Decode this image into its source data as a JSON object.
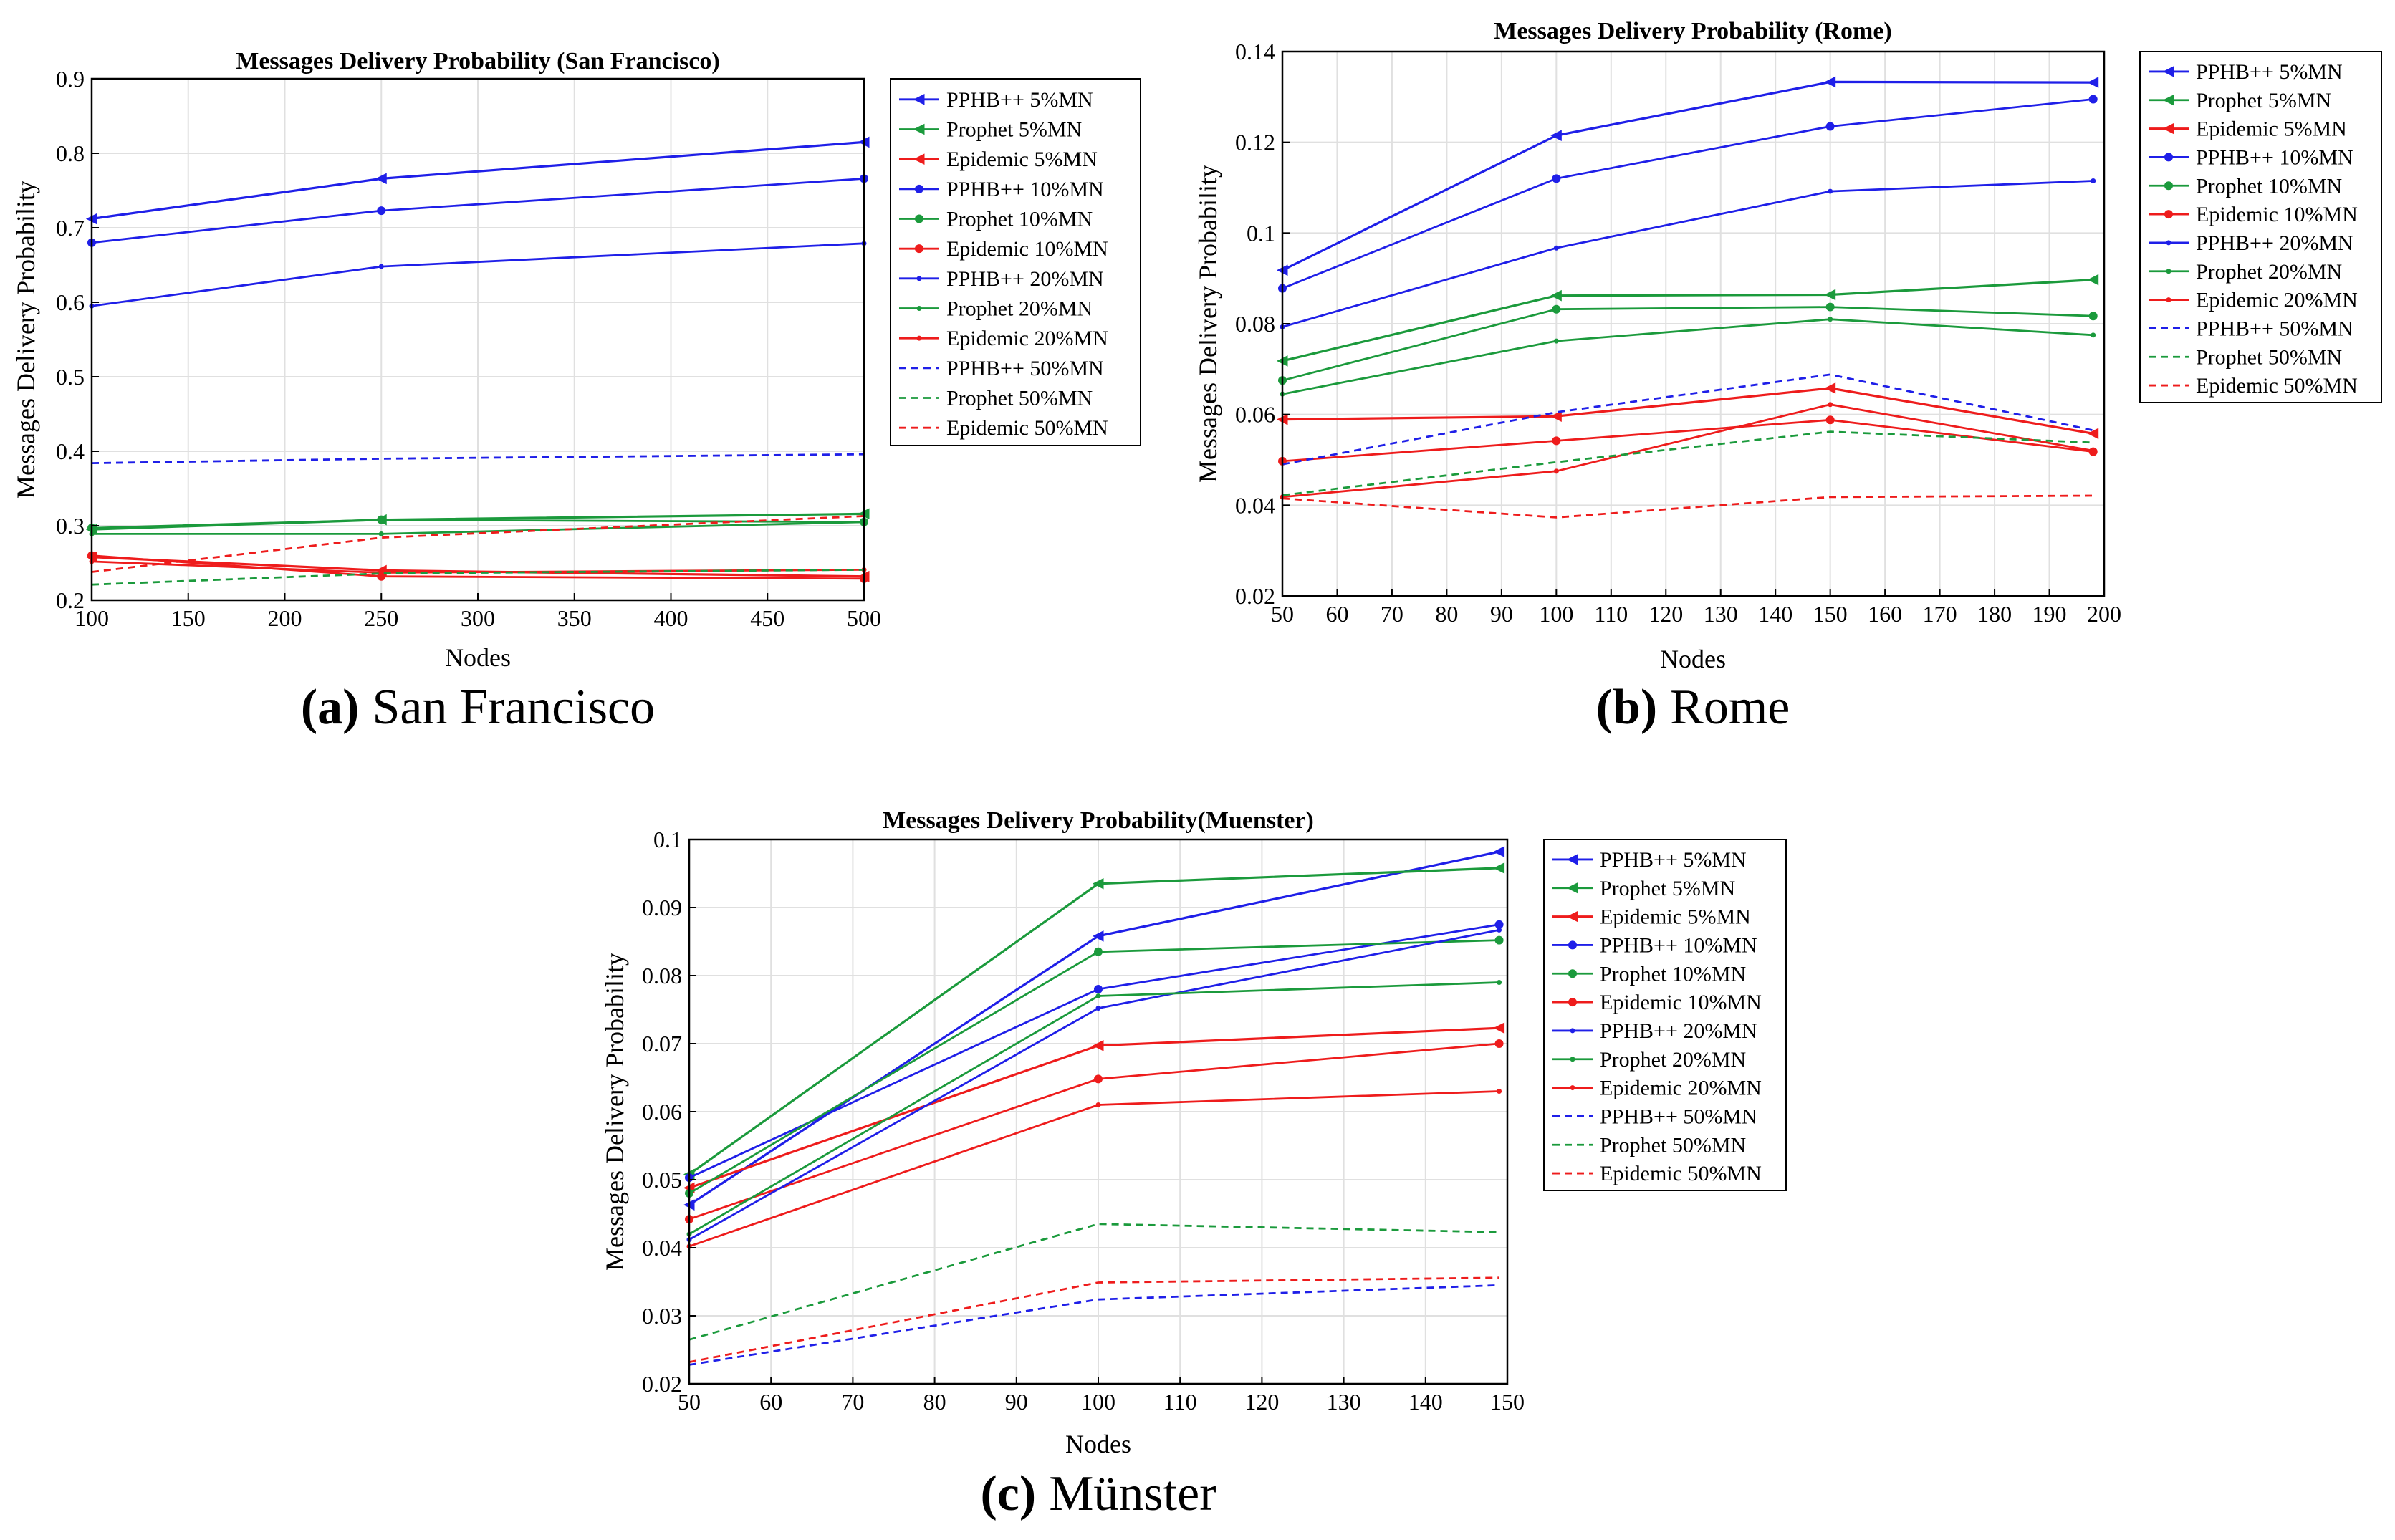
{
  "colors": {
    "PPHB": "#1f1fe8",
    "Prophet": "#1b9a3c",
    "Epidemic": "#ee1c1c"
  },
  "chart_data": [
    {
      "type": "line",
      "title": "Messages Delivery Probability (San Francisco)",
      "xlabel": "Nodes",
      "ylabel": "Messages Delivery Probability",
      "caption_letter": "(a)",
      "caption_text": "San Francisco",
      "xlim": [
        100,
        500
      ],
      "ylim": [
        0.2,
        0.9
      ],
      "xticks": [
        100,
        150,
        200,
        250,
        300,
        350,
        400,
        450,
        500
      ],
      "yticks": [
        0.2,
        0.3,
        0.4,
        0.5,
        0.6,
        0.7,
        0.8,
        0.9
      ],
      "xtick_labels": [
        "100",
        "150",
        "200",
        "250",
        "300",
        "350",
        "400",
        "450",
        "500"
      ],
      "ytick_labels": [
        "0.2",
        "0.3",
        "0.4",
        "0.5",
        "0.6",
        "0.7",
        "0.8",
        "0.9"
      ],
      "legend_position": "right",
      "series": [
        {
          "name": "PPHB++ 5%MN",
          "color": "#1f1fe8",
          "dash": false,
          "marker": "triangle",
          "x": [
            100,
            250,
            500
          ],
          "values": [
            0.712,
            0.766,
            0.815
          ]
        },
        {
          "name": "Prophet 5%MN",
          "color": "#1b9a3c",
          "dash": false,
          "marker": "triangle",
          "x": [
            100,
            250,
            500
          ],
          "values": [
            0.295,
            0.308,
            0.316
          ]
        },
        {
          "name": "Epidemic 5%MN",
          "color": "#ee1c1c",
          "dash": false,
          "marker": "triangle",
          "x": [
            100,
            250,
            500
          ],
          "values": [
            0.258,
            0.24,
            0.232
          ]
        },
        {
          "name": "PPHB++ 10%MN",
          "color": "#1f1fe8",
          "dash": false,
          "marker": "dot",
          "x": [
            100,
            250,
            500
          ],
          "values": [
            0.68,
            0.723,
            0.766
          ]
        },
        {
          "name": "Prophet 10%MN",
          "color": "#1b9a3c",
          "dash": false,
          "marker": "dot",
          "x": [
            100,
            250,
            500
          ],
          "values": [
            0.297,
            0.308,
            0.305
          ]
        },
        {
          "name": "Epidemic 10%MN",
          "color": "#ee1c1c",
          "dash": false,
          "marker": "dot",
          "x": [
            100,
            250,
            500
          ],
          "values": [
            0.26,
            0.232,
            0.229
          ]
        },
        {
          "name": "PPHB++ 20%MN",
          "color": "#1f1fe8",
          "dash": false,
          "marker": "small",
          "x": [
            100,
            250,
            500
          ],
          "values": [
            0.595,
            0.648,
            0.679
          ]
        },
        {
          "name": "Prophet 20%MN",
          "color": "#1b9a3c",
          "dash": false,
          "marker": "small",
          "x": [
            100,
            250,
            500
          ],
          "values": [
            0.289,
            0.289,
            0.305
          ]
        },
        {
          "name": "Epidemic 20%MN",
          "color": "#ee1c1c",
          "dash": false,
          "marker": "small",
          "x": [
            100,
            250,
            500
          ],
          "values": [
            0.252,
            0.237,
            0.241
          ]
        },
        {
          "name": "PPHB++ 50%MN",
          "color": "#1f1fe8",
          "dash": true,
          "marker": "none",
          "x": [
            100,
            250,
            500
          ],
          "values": [
            0.384,
            0.39,
            0.396
          ]
        },
        {
          "name": "Prophet 50%MN",
          "color": "#1b9a3c",
          "dash": true,
          "marker": "none",
          "x": [
            100,
            250,
            500
          ],
          "values": [
            0.221,
            0.236,
            0.241
          ]
        },
        {
          "name": "Epidemic 50%MN",
          "color": "#ee1c1c",
          "dash": true,
          "marker": "none",
          "x": [
            100,
            250,
            500
          ],
          "values": [
            0.238,
            0.284,
            0.313
          ]
        }
      ]
    },
    {
      "type": "line",
      "title": "Messages Delivery Probability (Rome)",
      "xlabel": "Nodes",
      "ylabel": "Messages Delivery Probability",
      "caption_letter": "(b)",
      "caption_text": "Rome",
      "xlim": [
        50,
        200
      ],
      "ylim": [
        0.02,
        0.14
      ],
      "xticks": [
        50,
        60,
        70,
        80,
        90,
        100,
        110,
        120,
        130,
        140,
        150,
        160,
        170,
        180,
        190,
        200
      ],
      "yticks": [
        0.02,
        0.04,
        0.06,
        0.08,
        0.1,
        0.12,
        0.14
      ],
      "xtick_labels": [
        "50",
        "60",
        "70",
        "80",
        "90",
        "100",
        "110",
        "120",
        "130",
        "140",
        "150",
        "160",
        "170",
        "180",
        "190",
        "200"
      ],
      "ytick_labels": [
        "0.02",
        "0.04",
        "0.06",
        "0.08",
        "0.1",
        "0.12",
        "0.14"
      ],
      "legend_position": "right",
      "series": [
        {
          "name": "PPHB++ 5%MN",
          "color": "#1f1fe8",
          "dash": false,
          "marker": "triangle",
          "x": [
            50,
            100,
            150,
            198
          ],
          "values": [
            0.0918,
            0.1215,
            0.1333,
            0.1332
          ]
        },
        {
          "name": "Prophet 5%MN",
          "color": "#1b9a3c",
          "dash": false,
          "marker": "triangle",
          "x": [
            50,
            100,
            150,
            198
          ],
          "values": [
            0.0718,
            0.0862,
            0.0864,
            0.0897
          ]
        },
        {
          "name": "Epidemic 5%MN",
          "color": "#ee1c1c",
          "dash": false,
          "marker": "triangle",
          "x": [
            50,
            100,
            150,
            198
          ],
          "values": [
            0.0589,
            0.0596,
            0.0658,
            0.0558
          ]
        },
        {
          "name": "PPHB++ 10%MN",
          "color": "#1f1fe8",
          "dash": false,
          "marker": "dot",
          "x": [
            50,
            100,
            150,
            198
          ],
          "values": [
            0.0878,
            0.112,
            0.1235,
            0.1295
          ]
        },
        {
          "name": "Prophet 10%MN",
          "color": "#1b9a3c",
          "dash": false,
          "marker": "dot",
          "x": [
            50,
            100,
            150,
            198
          ],
          "values": [
            0.0675,
            0.0832,
            0.0837,
            0.0817
          ]
        },
        {
          "name": "Epidemic 10%MN",
          "color": "#ee1c1c",
          "dash": false,
          "marker": "dot",
          "x": [
            50,
            100,
            150,
            198
          ],
          "values": [
            0.0497,
            0.0542,
            0.0588,
            0.0518
          ]
        },
        {
          "name": "PPHB++ 20%MN",
          "color": "#1f1fe8",
          "dash": false,
          "marker": "small",
          "x": [
            50,
            100,
            150,
            198
          ],
          "values": [
            0.0793,
            0.0967,
            0.1092,
            0.1115
          ]
        },
        {
          "name": "Prophet 20%MN",
          "color": "#1b9a3c",
          "dash": false,
          "marker": "small",
          "x": [
            50,
            100,
            150,
            198
          ],
          "values": [
            0.0645,
            0.0762,
            0.081,
            0.0775
          ]
        },
        {
          "name": "Epidemic 20%MN",
          "color": "#ee1c1c",
          "dash": false,
          "marker": "small",
          "x": [
            50,
            100,
            150,
            198
          ],
          "values": [
            0.0418,
            0.0475,
            0.0622,
            0.052
          ]
        },
        {
          "name": "PPHB++ 50%MN",
          "color": "#1f1fe8",
          "dash": true,
          "marker": "none",
          "x": [
            50,
            100,
            150,
            198
          ],
          "values": [
            0.049,
            0.0605,
            0.0688,
            0.0565
          ]
        },
        {
          "name": "Prophet 50%MN",
          "color": "#1b9a3c",
          "dash": true,
          "marker": "none",
          "x": [
            50,
            100,
            150,
            198
          ],
          "values": [
            0.0422,
            0.0495,
            0.0562,
            0.0538
          ]
        },
        {
          "name": "Epidemic 50%MN",
          "color": "#ee1c1c",
          "dash": true,
          "marker": "none",
          "x": [
            50,
            100,
            150,
            198
          ],
          "values": [
            0.0415,
            0.0373,
            0.0418,
            0.0421
          ]
        }
      ]
    },
    {
      "type": "line",
      "title": "Messages Delivery Probability(Muenster)",
      "xlabel": "Nodes",
      "ylabel": "Messages Delivery Probability",
      "caption_letter": "(c)",
      "caption_text": "Münster",
      "xlim": [
        50,
        150
      ],
      "ylim": [
        0.02,
        0.1
      ],
      "xticks": [
        50,
        60,
        70,
        80,
        90,
        100,
        110,
        120,
        130,
        140,
        150
      ],
      "yticks": [
        0.02,
        0.03,
        0.04,
        0.05,
        0.06,
        0.07,
        0.08,
        0.09,
        0.1
      ],
      "xtick_labels": [
        "50",
        "60",
        "70",
        "80",
        "90",
        "100",
        "110",
        "120",
        "130",
        "140",
        "150"
      ],
      "ytick_labels": [
        "0.02",
        "0.03",
        "0.04",
        "0.05",
        "0.06",
        "0.07",
        "0.08",
        "0.09",
        "0.1"
      ],
      "legend_position": "right",
      "series": [
        {
          "name": "PPHB++ 5%MN",
          "color": "#1f1fe8",
          "dash": false,
          "marker": "triangle",
          "x": [
            50,
            100,
            149
          ],
          "values": [
            0.0463,
            0.0858,
            0.0982
          ]
        },
        {
          "name": "Prophet 5%MN",
          "color": "#1b9a3c",
          "dash": false,
          "marker": "triangle",
          "x": [
            50,
            100,
            149
          ],
          "values": [
            0.0508,
            0.0935,
            0.0958
          ]
        },
        {
          "name": "Epidemic 5%MN",
          "color": "#ee1c1c",
          "dash": false,
          "marker": "triangle",
          "x": [
            50,
            100,
            149
          ],
          "values": [
            0.0488,
            0.0697,
            0.0723
          ]
        },
        {
          "name": "PPHB++ 10%MN",
          "color": "#1f1fe8",
          "dash": false,
          "marker": "dot",
          "x": [
            50,
            100,
            149
          ],
          "values": [
            0.0503,
            0.078,
            0.0875
          ]
        },
        {
          "name": "Prophet 10%MN",
          "color": "#1b9a3c",
          "dash": false,
          "marker": "dot",
          "x": [
            50,
            100,
            149
          ],
          "values": [
            0.048,
            0.0835,
            0.0852
          ]
        },
        {
          "name": "Epidemic 10%MN",
          "color": "#ee1c1c",
          "dash": false,
          "marker": "dot",
          "x": [
            50,
            100,
            149
          ],
          "values": [
            0.0442,
            0.0648,
            0.07
          ]
        },
        {
          "name": "PPHB++ 20%MN",
          "color": "#1f1fe8",
          "dash": false,
          "marker": "small",
          "x": [
            50,
            100,
            149
          ],
          "values": [
            0.0412,
            0.0752,
            0.0867
          ]
        },
        {
          "name": "Prophet 20%MN",
          "color": "#1b9a3c",
          "dash": false,
          "marker": "small",
          "x": [
            50,
            100,
            149
          ],
          "values": [
            0.042,
            0.077,
            0.079
          ]
        },
        {
          "name": "Epidemic 20%MN",
          "color": "#ee1c1c",
          "dash": false,
          "marker": "small",
          "x": [
            50,
            100,
            149
          ],
          "values": [
            0.0402,
            0.061,
            0.063
          ]
        },
        {
          "name": "PPHB++ 50%MN",
          "color": "#1f1fe8",
          "dash": true,
          "marker": "none",
          "x": [
            50,
            100,
            149
          ],
          "values": [
            0.0228,
            0.0324,
            0.0345
          ]
        },
        {
          "name": "Prophet 50%MN",
          "color": "#1b9a3c",
          "dash": true,
          "marker": "none",
          "x": [
            50,
            100,
            149
          ],
          "values": [
            0.0265,
            0.0435,
            0.0423
          ]
        },
        {
          "name": "Epidemic 50%MN",
          "color": "#ee1c1c",
          "dash": true,
          "marker": "none",
          "x": [
            50,
            100,
            149
          ],
          "values": [
            0.0232,
            0.0349,
            0.0356
          ]
        }
      ]
    }
  ]
}
